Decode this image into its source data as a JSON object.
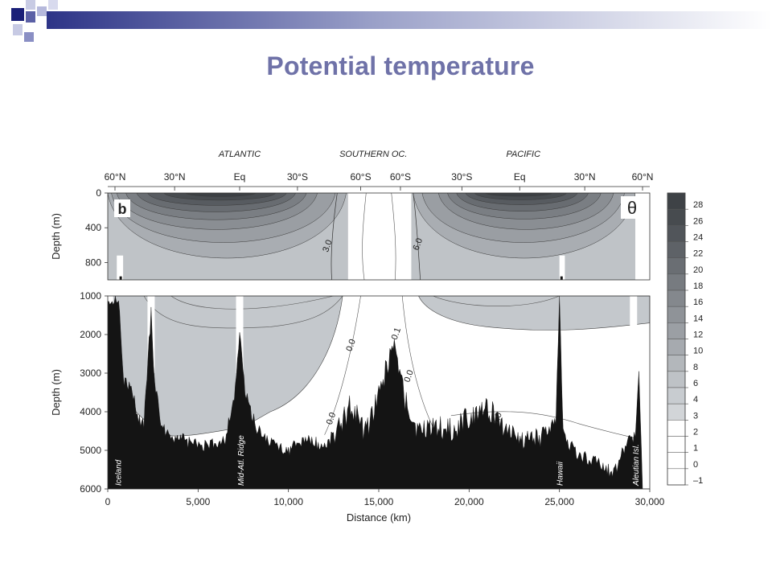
{
  "slide": {
    "title": "Potential temperature"
  },
  "chart_data": {
    "type": "heatmap",
    "panel_label": "b",
    "variable_symbol": "θ",
    "xlabel": "Distance (km)",
    "ylabel_upper": "Depth (m)",
    "ylabel_lower": "Depth (m)",
    "xlim": [
      0,
      30000
    ],
    "x_ticks": [
      0,
      5000,
      10000,
      15000,
      20000,
      25000,
      30000
    ],
    "x_tick_labels": [
      "0",
      "5,000",
      "10,000",
      "15,000",
      "20,000",
      "25,000",
      "30,000"
    ],
    "upper_ylim": [
      0,
      1000
    ],
    "upper_y_ticks": [
      0,
      400,
      800
    ],
    "upper_y_tick_labels": [
      "0",
      "400",
      "800"
    ],
    "lower_ylim": [
      1000,
      6000
    ],
    "lower_y_ticks": [
      1000,
      2000,
      3000,
      4000,
      5000,
      6000
    ],
    "lower_y_tick_labels": [
      "1000",
      "2000",
      "3000",
      "4000",
      "5000",
      "6000"
    ],
    "ocean_labels": [
      {
        "text": "ATLANTIC",
        "x": 7300
      },
      {
        "text": "SOUTHERN OC.",
        "x": 14700
      },
      {
        "text": "PACIFIC",
        "x": 23000
      }
    ],
    "latitude_ticks": [
      {
        "label": "60°N",
        "x": 400
      },
      {
        "label": "30°N",
        "x": 3700
      },
      {
        "label": "Eq",
        "x": 7300
      },
      {
        "label": "30°S",
        "x": 10500
      },
      {
        "label": "60°S",
        "x": 14000
      },
      {
        "label": "60°S",
        "x": 16200
      },
      {
        "label": "30°S",
        "x": 19600
      },
      {
        "label": "Eq",
        "x": 22800
      },
      {
        "label": "30°N",
        "x": 26400
      },
      {
        "label": "60°N",
        "x": 29600
      }
    ],
    "colorbar_levels": [
      "28",
      "26",
      "24",
      "22",
      "20",
      "18",
      "16",
      "14",
      "12",
      "10",
      "8",
      "6",
      "4",
      "3",
      "2",
      "1",
      "0",
      "–1"
    ],
    "colorbar_colors": [
      "#3e4246",
      "#474b4f",
      "#51555a",
      "#5e6267",
      "#6a6e73",
      "#777b80",
      "#84888d",
      "#8f9398",
      "#9b9fa4",
      "#a6aaaf",
      "#b3b7bb",
      "#bec2c6",
      "#c8ccd0",
      "#d2d5d8",
      "#ffffff",
      "#ffffff",
      "#ffffff",
      "#ffffff"
    ],
    "contour_labels": [
      {
        "text": "3.0",
        "x": 12300,
        "depth": 620
      },
      {
        "text": "6.0",
        "x": 17300,
        "depth": 600
      },
      {
        "text": "0.0",
        "x": 13600,
        "depth": 2300
      },
      {
        "text": "0.1",
        "x": 16100,
        "depth": 2000
      },
      {
        "text": "0.0",
        "x": 16800,
        "depth": 3100
      },
      {
        "text": "0.0",
        "x": 12500,
        "depth": 4200
      },
      {
        "text": "1.0",
        "x": 21700,
        "depth": 4200
      }
    ],
    "topography_labels": [
      {
        "text": "Iceland",
        "x": 550
      },
      {
        "text": "Mid-Atl. Ridge",
        "x": 7350
      },
      {
        "text": "Hawaii",
        "x": 25000
      },
      {
        "text": "Aleutian Isl.",
        "x": 29200
      }
    ],
    "grid": false
  }
}
